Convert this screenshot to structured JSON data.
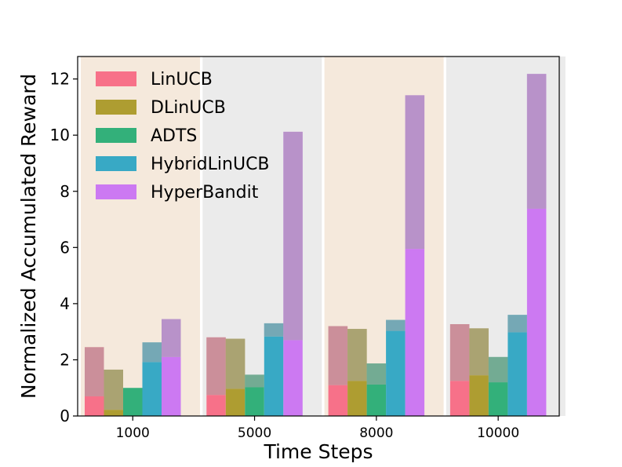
{
  "chart_data": {
    "type": "bar",
    "xlabel": "Time Steps",
    "ylabel": "Normalized Accumulated Reward",
    "ylim": [
      0,
      12.8
    ],
    "yticks": [
      0,
      2,
      4,
      6,
      8,
      10,
      12
    ],
    "categories": [
      "1000",
      "5000",
      "8000",
      "10000"
    ],
    "legend_position": "top-left",
    "group_backgrounds": [
      "#f5e9dc",
      "#ebebeb",
      "#f5e9dc",
      "#ebebeb"
    ],
    "series": [
      {
        "name": "LinUCB",
        "color": "#f77189",
        "values": [
          0.7,
          0.75,
          1.1,
          1.25
        ],
        "totals": [
          2.45,
          2.8,
          3.2,
          3.27
        ]
      },
      {
        "name": "DLinUCB",
        "color": "#ae9d31",
        "values": [
          0.22,
          0.97,
          1.25,
          1.45
        ],
        "totals": [
          1.65,
          2.75,
          3.1,
          3.12
        ]
      },
      {
        "name": "ADTS",
        "color": "#33b07a",
        "values": [
          1.0,
          1.02,
          1.12,
          1.2
        ],
        "totals": [
          1.0,
          1.47,
          1.87,
          2.1
        ]
      },
      {
        "name": "HybridLinUCB",
        "color": "#38a9c5",
        "values": [
          1.92,
          2.83,
          3.03,
          2.98
        ],
        "totals": [
          2.62,
          3.3,
          3.42,
          3.6
        ]
      },
      {
        "name": "HyperBandit",
        "color": "#cc79f2",
        "values": [
          2.1,
          2.7,
          5.95,
          7.38
        ],
        "totals": [
          3.45,
          10.12,
          11.42,
          12.18
        ]
      }
    ],
    "upper_overlay_color": "#a7a7a7",
    "upper_overlay_opacity": 0.55
  }
}
